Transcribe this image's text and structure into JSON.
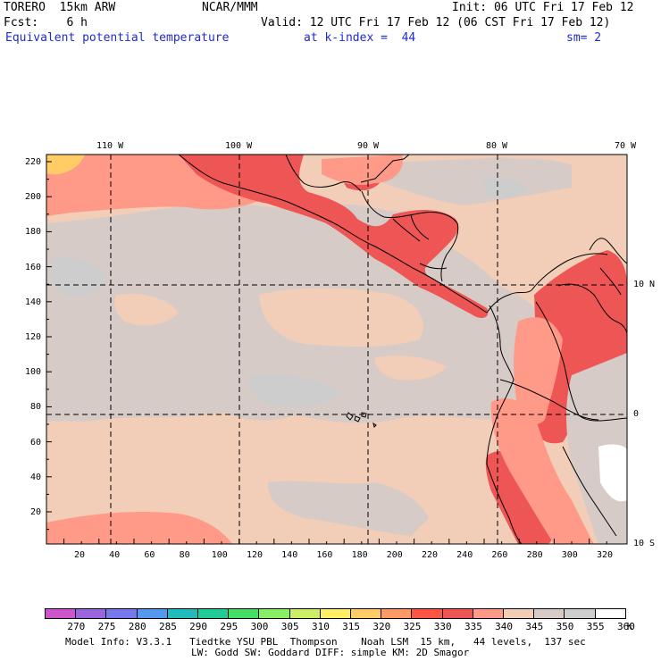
{
  "header": {
    "model": "TORERO  15km ARW",
    "center": "NCAR/MMM",
    "init": "Init: 06 UTC Fri 17 Feb 12",
    "fcst": "Fcst:    6 h",
    "valid": "Valid: 12 UTC Fri 17 Feb 12 (06 CST Fri 17 Feb 12)",
    "field": "Equivalent potential temperature",
    "level": "at k-index =  44",
    "smoothing": "sm= 2"
  },
  "map": {
    "top_lon_labels": [
      "110 W",
      "100 W",
      "90 W",
      "80 W",
      "70 W"
    ],
    "right_lat_labels": [
      "10 N",
      "0",
      "10 S"
    ],
    "left_grid_labels": [
      "220",
      "200",
      "180",
      "160",
      "140",
      "120",
      "100",
      "80",
      "60",
      "40",
      "20"
    ],
    "bottom_grid_labels": [
      "20",
      "40",
      "60",
      "80",
      "100",
      "120",
      "140",
      "160",
      "180",
      "200",
      "220",
      "240",
      "260",
      "280",
      "300",
      "320"
    ]
  },
  "colorbar": {
    "unit": "K",
    "labels": [
      "270",
      "275",
      "280",
      "285",
      "290",
      "295",
      "300",
      "305",
      "310",
      "315",
      "320",
      "325",
      "330",
      "335",
      "340",
      "345",
      "350",
      "355",
      "360"
    ],
    "colors": [
      "#cc55cc",
      "#9966dd",
      "#7777ee",
      "#5599ee",
      "#22bbbb",
      "#22cc99",
      "#44dd66",
      "#88ee66",
      "#ccee66",
      "#ffee66",
      "#ffcc66",
      "#ff9966",
      "#ff5544",
      "#ee5555",
      "#ff9988",
      "#f2cdb8",
      "#d6cbc6",
      "#cdcdcd",
      "#ffffff"
    ]
  },
  "footer": {
    "line1": "Model Info: V3.3.1   Tiedtke YSU PBL  Thompson    Noah LSM  15 km,   44 levels,  137 sec",
    "line2": "LW: Godd SW: Goddard DIFF: simple KM: 2D Smagor"
  }
}
